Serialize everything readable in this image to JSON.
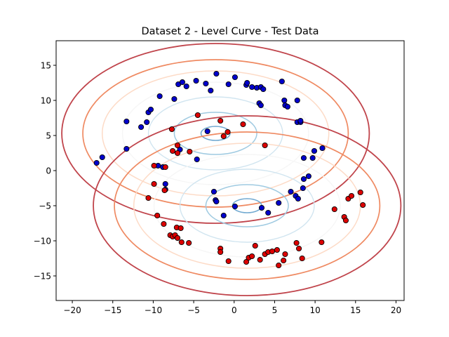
{
  "chart_data": {
    "type": "scatter",
    "title": "Dataset 2 - Level Curve - Test Data",
    "xlabel": "",
    "ylabel": "",
    "xlim": [
      -22,
      21
    ],
    "ylim": [
      -18.5,
      18.5
    ],
    "xticks": [
      -20,
      -15,
      -10,
      -5,
      0,
      5,
      10,
      15,
      20
    ],
    "yticks": [
      -15,
      -10,
      -5,
      0,
      5,
      10,
      15
    ],
    "xtick_labels": [
      "−20",
      "−15",
      "−10",
      "−5",
      "0",
      "5",
      "10",
      "15",
      "20"
    ],
    "ytick_labels": [
      "−15",
      "−10",
      "−5",
      "0",
      "5",
      "10",
      "15"
    ],
    "grid": false,
    "contours": [
      {
        "center": [
          -2.3,
          5.3
        ],
        "levels": [
          {
            "rx": 1.8,
            "ry": 1.0,
            "color": "#6fa8d0",
            "width": 1.6
          },
          {
            "rx": 5.1,
            "ry": 3.0,
            "color": "#9fcae1",
            "width": 1.5
          },
          {
            "rx": 8.3,
            "ry": 5.2,
            "color": "#d1e5f0",
            "width": 1.4
          },
          {
            "rx": 11.5,
            "ry": 7.3,
            "color": "#f6f6f6",
            "width": 1.4
          },
          {
            "rx": 14.0,
            "ry": 8.9,
            "color": "#fddbc7",
            "width": 1.5
          },
          {
            "rx": 16.4,
            "ry": 10.5,
            "color": "#ef8a62",
            "width": 1.7
          },
          {
            "rx": 19.0,
            "ry": 12.8,
            "color": "#c0444b",
            "width": 1.8
          }
        ]
      },
      {
        "center": [
          1.6,
          -5.0
        ],
        "levels": [
          {
            "rx": 1.8,
            "ry": 1.0,
            "color": "#6fa8d0",
            "width": 1.6
          },
          {
            "rx": 5.1,
            "ry": 3.0,
            "color": "#9fcae1",
            "width": 1.5
          },
          {
            "rx": 8.3,
            "ry": 5.2,
            "color": "#d1e5f0",
            "width": 1.4
          },
          {
            "rx": 11.5,
            "ry": 7.3,
            "color": "#f6f6f6",
            "width": 1.4
          },
          {
            "rx": 14.0,
            "ry": 8.9,
            "color": "#fddbc7",
            "width": 1.5
          },
          {
            "rx": 16.4,
            "ry": 10.5,
            "color": "#ef8a62",
            "width": 1.7
          },
          {
            "rx": 19.0,
            "ry": 12.8,
            "color": "#c0444b",
            "width": 1.8
          }
        ]
      }
    ],
    "series": [
      {
        "color": "#0000cc",
        "points": [
          [
            -17.0,
            1.1
          ],
          [
            -16.3,
            1.9
          ],
          [
            -13.3,
            7.0
          ],
          [
            -13.3,
            3.1
          ],
          [
            -11.5,
            6.2
          ],
          [
            -10.8,
            6.9
          ],
          [
            -10.6,
            8.3
          ],
          [
            -10.3,
            8.7
          ],
          [
            -9.2,
            10.6
          ],
          [
            -7.4,
            10.2
          ],
          [
            -6.9,
            12.3
          ],
          [
            -6.4,
            12.6
          ],
          [
            -5.9,
            12.0
          ],
          [
            -4.7,
            12.8
          ],
          [
            -3.5,
            12.4
          ],
          [
            -2.9,
            11.4
          ],
          [
            -2.2,
            13.8
          ],
          [
            -0.7,
            12.3
          ],
          [
            0.1,
            13.3
          ],
          [
            1.5,
            12.2
          ],
          [
            1.6,
            12.5
          ],
          [
            2.2,
            11.9
          ],
          [
            2.8,
            11.8
          ],
          [
            3.3,
            11.9
          ],
          [
            3.6,
            11.6
          ],
          [
            3.1,
            9.6
          ],
          [
            3.3,
            9.3
          ],
          [
            5.9,
            12.7
          ],
          [
            6.2,
            10.0
          ],
          [
            6.3,
            9.3
          ],
          [
            6.6,
            9.1
          ],
          [
            7.8,
            10.0
          ],
          [
            7.8,
            6.9
          ],
          [
            8.2,
            6.9
          ],
          [
            8.2,
            7.1
          ],
          [
            10.9,
            3.2
          ],
          [
            9.9,
            2.8
          ],
          [
            9.7,
            1.8
          ],
          [
            8.6,
            1.8
          ],
          [
            9.2,
            -0.8
          ],
          [
            8.6,
            -1.2
          ],
          [
            8.5,
            -2.5
          ],
          [
            7.6,
            -3.6
          ],
          [
            7.9,
            -4.0
          ],
          [
            7.0,
            -3.0
          ],
          [
            -6.7,
            3.0
          ],
          [
            -4.6,
            1.6
          ],
          [
            -3.3,
            5.6
          ],
          [
            -2.5,
            -3.0
          ],
          [
            -2.3,
            -4.2
          ],
          [
            -2.2,
            -4.4
          ],
          [
            -1.3,
            -6.4
          ],
          [
            0.1,
            -5.1
          ],
          [
            3.4,
            -5.3
          ],
          [
            4.2,
            -6.0
          ],
          [
            5.5,
            -4.6
          ],
          [
            -9.4,
            0.7
          ],
          [
            -8.8,
            0.5
          ],
          [
            -8.5,
            -1.9
          ],
          [
            -8.5,
            -2.7
          ]
        ]
      },
      {
        "color": "#dd0000",
        "points": [
          [
            -4.5,
            7.9
          ],
          [
            -1.7,
            7.1
          ],
          [
            1.1,
            6.6
          ],
          [
            -0.8,
            5.5
          ],
          [
            -1.3,
            4.9
          ],
          [
            -7.7,
            5.9
          ],
          [
            -7.6,
            2.8
          ],
          [
            -7.0,
            3.6
          ],
          [
            -7.0,
            2.5
          ],
          [
            -5.5,
            2.7
          ],
          [
            3.8,
            3.6
          ],
          [
            -9.9,
            0.7
          ],
          [
            -8.5,
            0.5
          ],
          [
            -9.9,
            -1.9
          ],
          [
            -8.6,
            -2.8
          ],
          [
            -10.6,
            -3.9
          ],
          [
            -9.5,
            -6.4
          ],
          [
            -8.7,
            -7.6
          ],
          [
            -7.9,
            -9.2
          ],
          [
            -7.6,
            -9.4
          ],
          [
            -7.1,
            -8.1
          ],
          [
            -6.6,
            -8.2
          ],
          [
            -7.3,
            -9.2
          ],
          [
            -7.0,
            -9.6
          ],
          [
            -6.5,
            -10.2
          ],
          [
            -5.6,
            -10.3
          ],
          [
            -1.7,
            -11.1
          ],
          [
            -1.7,
            -11.6
          ],
          [
            -0.7,
            -12.9
          ],
          [
            1.5,
            -13.0
          ],
          [
            1.8,
            -12.4
          ],
          [
            2.2,
            -12.2
          ],
          [
            2.6,
            -10.7
          ],
          [
            3.2,
            -12.7
          ],
          [
            3.8,
            -11.9
          ],
          [
            4.2,
            -11.6
          ],
          [
            4.7,
            -11.5
          ],
          [
            5.3,
            -11.3
          ],
          [
            5.5,
            -13.5
          ],
          [
            6.1,
            -12.8
          ],
          [
            6.3,
            -11.9
          ],
          [
            7.7,
            -10.3
          ],
          [
            8.0,
            -11.1
          ],
          [
            8.4,
            -12.5
          ],
          [
            10.8,
            -10.2
          ],
          [
            12.4,
            -5.5
          ],
          [
            13.6,
            -6.6
          ],
          [
            13.8,
            -7.1
          ],
          [
            14.1,
            -4.0
          ],
          [
            14.5,
            -3.6
          ],
          [
            15.6,
            -3.1
          ],
          [
            15.9,
            -4.9
          ]
        ]
      }
    ]
  }
}
